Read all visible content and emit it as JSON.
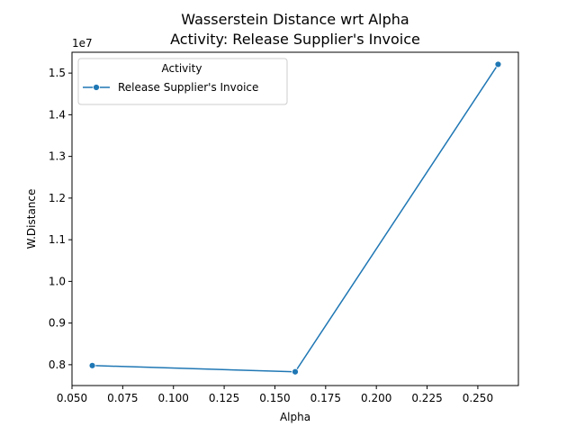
{
  "chart_data": {
    "type": "line",
    "title_line1": "Wasserstein Distance wrt Alpha",
    "title_line2": "Activity: Release Supplier's Invoice",
    "xlabel": "Alpha",
    "ylabel": "W.Distance",
    "y_offset_label": "1e7",
    "xlim": [
      0.05,
      0.27
    ],
    "ylim": [
      7.5,
      15.5
    ],
    "xticks": [
      0.05,
      0.075,
      0.1,
      0.125,
      0.15,
      0.175,
      0.2,
      0.225,
      0.25
    ],
    "xtick_labels": [
      "0.050",
      "0.075",
      "0.100",
      "0.125",
      "0.150",
      "0.175",
      "0.200",
      "0.225",
      "0.250"
    ],
    "yticks": [
      8,
      9,
      10,
      11,
      12,
      13,
      14,
      15
    ],
    "ytick_labels": [
      "0.8",
      "0.9",
      "1.0",
      "1.1",
      "1.2",
      "1.3",
      "1.4",
      "1.5"
    ],
    "y_units_note": "y values in units of 1e6",
    "grid": false,
    "legend": {
      "title": "Activity",
      "placement": "top-left"
    },
    "series": [
      {
        "name": "Release Supplier's Invoice",
        "color": "#1f77b4",
        "marker": "circle",
        "x": [
          0.06,
          0.16,
          0.26
        ],
        "y": [
          7.98,
          7.83,
          15.21
        ]
      }
    ]
  }
}
